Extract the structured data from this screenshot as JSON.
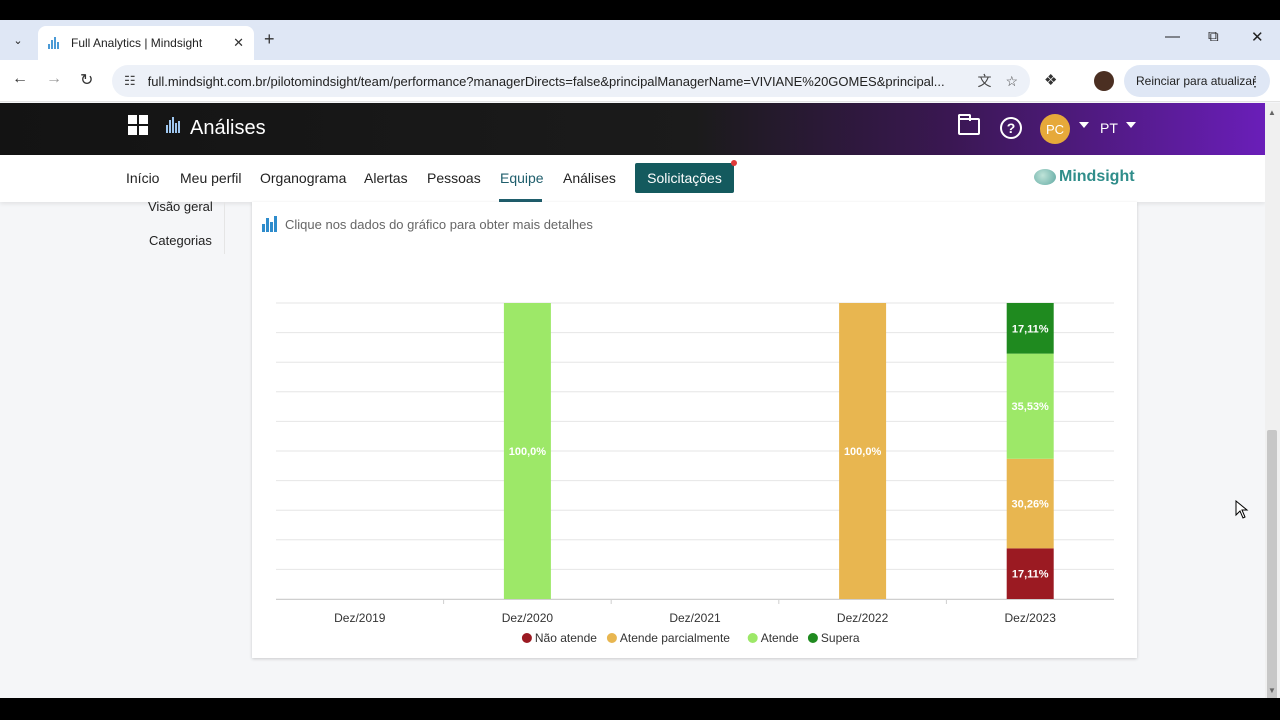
{
  "browser": {
    "tab_title": "Full Analytics | Mindsight",
    "url": "full.mindsight.com.br/pilotomindsight/team/performance?managerDirects=false&principalManagerName=VIVIANE%20GOMES&principal...",
    "update_label": "Reinciar para atualizar"
  },
  "app": {
    "title": "Análises",
    "avatar_initials": "PC",
    "language": "PT"
  },
  "nav": {
    "items": [
      "Início",
      "Meu perfil",
      "Organograma",
      "Alertas",
      "Pessoas",
      "Equipe",
      "Análises"
    ],
    "active": "Equipe",
    "solicitacoes": "Solicitações",
    "brand": "Mindsight"
  },
  "side": {
    "items": [
      "Visão geral",
      "Categorias"
    ]
  },
  "card": {
    "hint": "Clique nos dados do gráfico para obter mais detalhes"
  },
  "chart_data": {
    "type": "bar",
    "stacked": true,
    "categories": [
      "Dez/2019",
      "Dez/2020",
      "Dez/2021",
      "Dez/2022",
      "Dez/2023"
    ],
    "series": [
      {
        "name": "Não atende",
        "color": "#9b1a22",
        "values": [
          0,
          0,
          0,
          0,
          17.11
        ]
      },
      {
        "name": "Atende parcialmente",
        "color": "#e8b650",
        "values": [
          0,
          0,
          0,
          100.0,
          30.26
        ]
      },
      {
        "name": "Atende",
        "color": "#9de868",
        "values": [
          0,
          100.0,
          0,
          0,
          35.53
        ]
      },
      {
        "name": "Supera",
        "color": "#1f8a1f",
        "values": [
          0,
          0,
          0,
          0,
          17.11
        ]
      }
    ],
    "data_labels": [
      {
        "category": "Dez/2020",
        "series": "Atende",
        "text": "100,0%"
      },
      {
        "category": "Dez/2022",
        "series": "Atende parcialmente",
        "text": "100,0%"
      },
      {
        "category": "Dez/2023",
        "series": "Não atende",
        "text": "17,11%"
      },
      {
        "category": "Dez/2023",
        "series": "Atende parcialmente",
        "text": "30,26%"
      },
      {
        "category": "Dez/2023",
        "series": "Atende",
        "text": "35,53%"
      },
      {
        "category": "Dez/2023",
        "series": "Supera",
        "text": "17,11%"
      }
    ],
    "ylim": [
      0,
      100
    ],
    "grid": true,
    "legend": "bottom"
  }
}
